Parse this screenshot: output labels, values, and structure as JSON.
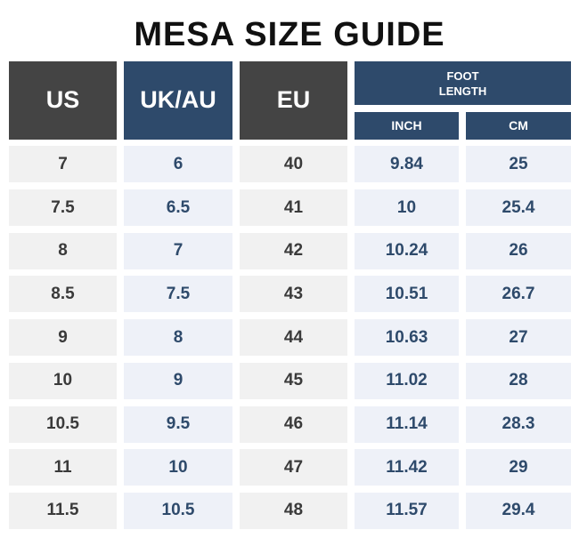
{
  "title": "MESA SIZE GUIDE",
  "headers": {
    "us": "US",
    "ukau": "UK/AU",
    "eu": "EU",
    "foot_line1": "FOOT",
    "foot_line2": "LENGTH",
    "inch": "INCH",
    "cm": "CM"
  },
  "rows": [
    {
      "us": "7",
      "ukau": "6",
      "eu": "40",
      "inch": "9.84",
      "cm": "25"
    },
    {
      "us": "7.5",
      "ukau": "6.5",
      "eu": "41",
      "inch": "10",
      "cm": "25.4"
    },
    {
      "us": "8",
      "ukau": "7",
      "eu": "42",
      "inch": "10.24",
      "cm": "26"
    },
    {
      "us": "8.5",
      "ukau": "7.5",
      "eu": "43",
      "inch": "10.51",
      "cm": "26.7"
    },
    {
      "us": "9",
      "ukau": "8",
      "eu": "44",
      "inch": "10.63",
      "cm": "27"
    },
    {
      "us": "10",
      "ukau": "9",
      "eu": "45",
      "inch": "11.02",
      "cm": "28"
    },
    {
      "us": "10.5",
      "ukau": "9.5",
      "eu": "46",
      "inch": "11.14",
      "cm": "28.3"
    },
    {
      "us": "11",
      "ukau": "10",
      "eu": "47",
      "inch": "11.42",
      "cm": "29"
    },
    {
      "us": "11.5",
      "ukau": "10.5",
      "eu": "48",
      "inch": "11.57",
      "cm": "29.4"
    }
  ],
  "colors": {
    "header_dark": "#444444",
    "header_navy": "#2e4a6b",
    "row_gray": "#f1f1f1",
    "row_blue": "#eef1f8"
  }
}
